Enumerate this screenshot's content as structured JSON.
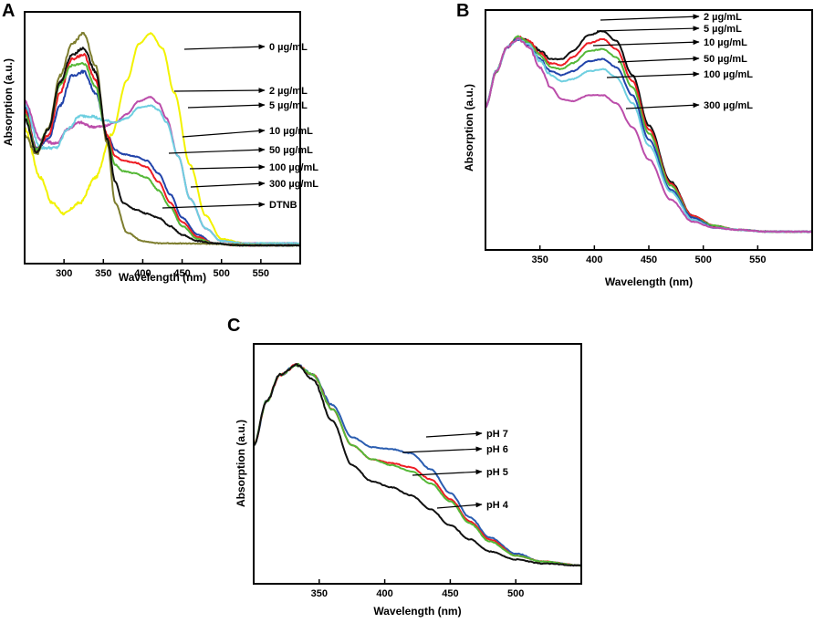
{
  "figure": {
    "panels": [
      "A",
      "B",
      "C"
    ]
  },
  "chart_data": [
    {
      "id": "A",
      "type": "line",
      "panel_label": "A",
      "title": "",
      "xlabel": "Wavelength (nm)",
      "ylabel": "Absorption (a.u.)",
      "xlim": [
        250,
        600
      ],
      "ylim": [
        0,
        1.05
      ],
      "xticks": [
        300,
        350,
        400,
        450,
        500,
        550
      ],
      "grid": false,
      "series": [
        {
          "name": "0 µg/mL",
          "color": "#f2f200",
          "x": [
            250,
            270,
            285,
            300,
            320,
            340,
            360,
            380,
            395,
            410,
            425,
            440,
            460,
            480,
            500,
            530,
            560,
            600
          ],
          "y": [
            0.55,
            0.32,
            0.2,
            0.15,
            0.2,
            0.32,
            0.52,
            0.78,
            0.95,
            1.0,
            0.93,
            0.72,
            0.38,
            0.14,
            0.03,
            0.01,
            0.01,
            0.01
          ]
        },
        {
          "name": "2 µg/mL",
          "color": "#bb4daa",
          "x": [
            250,
            270,
            290,
            305,
            320,
            335,
            350,
            365,
            380,
            395,
            410,
            420,
            430,
            445,
            460,
            480,
            500,
            530,
            600
          ],
          "y": [
            0.68,
            0.5,
            0.48,
            0.55,
            0.58,
            0.56,
            0.56,
            0.58,
            0.62,
            0.68,
            0.7,
            0.67,
            0.6,
            0.42,
            0.22,
            0.08,
            0.02,
            0.01,
            0.01
          ]
        },
        {
          "name": "5 µg/mL",
          "color": "#6ecfe0",
          "x": [
            250,
            270,
            290,
            305,
            320,
            335,
            350,
            365,
            380,
            395,
            410,
            420,
            430,
            445,
            460,
            480,
            500,
            530,
            600
          ],
          "y": [
            0.66,
            0.46,
            0.46,
            0.55,
            0.61,
            0.61,
            0.59,
            0.58,
            0.6,
            0.65,
            0.66,
            0.64,
            0.58,
            0.42,
            0.22,
            0.08,
            0.02,
            0.01,
            0.01
          ]
        },
        {
          "name": "10 µg/mL",
          "color": "#2244aa",
          "x": [
            250,
            265,
            280,
            295,
            310,
            325,
            340,
            355,
            365,
            375,
            390,
            405,
            420,
            435,
            450,
            470,
            490,
            520,
            600
          ],
          "y": [
            0.65,
            0.46,
            0.5,
            0.66,
            0.8,
            0.82,
            0.72,
            0.52,
            0.45,
            0.43,
            0.42,
            0.4,
            0.34,
            0.24,
            0.13,
            0.05,
            0.01,
            0.0,
            0.0
          ]
        },
        {
          "name": "50 µg/mL",
          "color": "#ee1c24",
          "x": [
            250,
            265,
            280,
            295,
            310,
            325,
            340,
            355,
            365,
            375,
            390,
            405,
            420,
            435,
            450,
            470,
            490,
            520,
            600
          ],
          "y": [
            0.64,
            0.45,
            0.52,
            0.72,
            0.88,
            0.9,
            0.78,
            0.52,
            0.42,
            0.4,
            0.39,
            0.37,
            0.3,
            0.2,
            0.11,
            0.04,
            0.01,
            0.0,
            0.0
          ]
        },
        {
          "name": "100 µg/mL",
          "color": "#55b837",
          "x": [
            250,
            265,
            280,
            295,
            310,
            325,
            340,
            355,
            365,
            375,
            390,
            405,
            420,
            435,
            450,
            470,
            490,
            520,
            600
          ],
          "y": [
            0.62,
            0.45,
            0.55,
            0.76,
            0.85,
            0.86,
            0.75,
            0.5,
            0.38,
            0.35,
            0.34,
            0.32,
            0.26,
            0.18,
            0.09,
            0.03,
            0.01,
            0.0,
            0.0
          ]
        },
        {
          "name": "300 µg/mL",
          "color": "#7d7d2e",
          "x": [
            250,
            265,
            280,
            295,
            310,
            325,
            340,
            355,
            365,
            380,
            400,
            420,
            600
          ],
          "y": [
            0.52,
            0.43,
            0.55,
            0.8,
            0.95,
            1.0,
            0.85,
            0.48,
            0.2,
            0.06,
            0.02,
            0.01,
            0.0
          ]
        },
        {
          "name": "DTNB",
          "color": "#111111",
          "x": [
            250,
            265,
            280,
            295,
            310,
            325,
            340,
            355,
            365,
            375,
            390,
            405,
            420,
            435,
            450,
            470,
            490,
            520,
            600
          ],
          "y": [
            0.6,
            0.44,
            0.55,
            0.77,
            0.9,
            0.93,
            0.82,
            0.5,
            0.3,
            0.2,
            0.17,
            0.15,
            0.13,
            0.09,
            0.05,
            0.02,
            0.01,
            0.0,
            0.0
          ]
        }
      ],
      "annotations": [
        "0 µg/mL",
        "2 µg/mL",
        "5 µg/mL",
        "10 µg/mL",
        "50 µg/mL",
        "100 µg/mL",
        "300 µg/mL",
        "DTNB"
      ]
    },
    {
      "id": "B",
      "type": "line",
      "panel_label": "B",
      "title": "",
      "xlabel": "Wavelength (nm)",
      "ylabel": "Absorption (a.u.)",
      "xlim": [
        300,
        600
      ],
      "ylim": [
        0,
        1.05
      ],
      "xticks": [
        350,
        400,
        450,
        500,
        550
      ],
      "grid": false,
      "series": [
        {
          "name": "2 µg/mL",
          "color": "#111111",
          "x": [
            300,
            310,
            320,
            330,
            340,
            350,
            360,
            370,
            380,
            395,
            408,
            420,
            435,
            450,
            470,
            490,
            510,
            530,
            560,
            600
          ],
          "y": [
            0.62,
            0.8,
            0.92,
            0.97,
            0.95,
            0.9,
            0.86,
            0.86,
            0.9,
            0.98,
            1.0,
            0.95,
            0.78,
            0.53,
            0.25,
            0.08,
            0.03,
            0.01,
            0.0,
            0.0
          ]
        },
        {
          "name": "5 µg/mL",
          "color": "#ee1c24",
          "x": [
            300,
            310,
            320,
            330,
            340,
            350,
            360,
            370,
            380,
            395,
            408,
            420,
            435,
            450,
            470,
            490,
            510,
            530,
            560,
            600
          ],
          "y": [
            0.62,
            0.8,
            0.92,
            0.97,
            0.95,
            0.89,
            0.84,
            0.83,
            0.87,
            0.94,
            0.96,
            0.91,
            0.75,
            0.51,
            0.24,
            0.08,
            0.03,
            0.01,
            0.0,
            0.0
          ]
        },
        {
          "name": "10 µg/mL",
          "color": "#55b837",
          "x": [
            300,
            310,
            320,
            330,
            340,
            350,
            360,
            370,
            380,
            395,
            408,
            420,
            435,
            450,
            470,
            490,
            510,
            530,
            560,
            600
          ],
          "y": [
            0.62,
            0.8,
            0.92,
            0.97,
            0.94,
            0.88,
            0.82,
            0.81,
            0.84,
            0.9,
            0.91,
            0.87,
            0.72,
            0.49,
            0.23,
            0.07,
            0.03,
            0.01,
            0.0,
            0.0
          ]
        },
        {
          "name": "50 µg/mL",
          "color": "#2244aa",
          "x": [
            300,
            310,
            320,
            330,
            340,
            350,
            360,
            370,
            380,
            395,
            408,
            420,
            435,
            450,
            470,
            490,
            510,
            530,
            560,
            600
          ],
          "y": [
            0.62,
            0.8,
            0.92,
            0.96,
            0.93,
            0.86,
            0.8,
            0.78,
            0.8,
            0.85,
            0.86,
            0.82,
            0.68,
            0.46,
            0.21,
            0.07,
            0.02,
            0.01,
            0.0,
            0.0
          ]
        },
        {
          "name": "100 µg/mL",
          "color": "#6ecfe0",
          "x": [
            300,
            310,
            320,
            330,
            340,
            350,
            360,
            370,
            380,
            395,
            408,
            420,
            435,
            450,
            470,
            490,
            510,
            530,
            560,
            600
          ],
          "y": [
            0.62,
            0.8,
            0.92,
            0.96,
            0.93,
            0.85,
            0.78,
            0.75,
            0.76,
            0.8,
            0.81,
            0.77,
            0.64,
            0.43,
            0.2,
            0.06,
            0.02,
            0.01,
            0.0,
            0.0
          ]
        },
        {
          "name": "300 µg/mL",
          "color": "#bb4daa",
          "x": [
            300,
            310,
            320,
            330,
            340,
            350,
            360,
            370,
            380,
            395,
            408,
            420,
            435,
            450,
            470,
            490,
            510,
            530,
            560,
            600
          ],
          "y": [
            0.62,
            0.8,
            0.92,
            0.96,
            0.92,
            0.82,
            0.72,
            0.66,
            0.65,
            0.68,
            0.68,
            0.64,
            0.52,
            0.36,
            0.16,
            0.05,
            0.02,
            0.01,
            0.0,
            0.0
          ]
        }
      ],
      "annotations": [
        "2 µg/mL",
        "5 µg/mL",
        "10 µg/mL",
        "50 µg/mL",
        "100 µg/mL",
        "300 µg/mL"
      ]
    },
    {
      "id": "C",
      "type": "line",
      "panel_label": "C",
      "title": "",
      "xlabel": "Wavelength (nm)",
      "ylabel": "Absorption (a.u.)",
      "xlim": [
        300,
        550
      ],
      "ylim": [
        0,
        1.05
      ],
      "xticks": [
        350,
        400,
        450,
        500
      ],
      "grid": false,
      "series": [
        {
          "name": "pH 7",
          "color": "#2a5db0",
          "x": [
            300,
            310,
            320,
            333,
            345,
            360,
            375,
            390,
            405,
            420,
            435,
            450,
            465,
            480,
            500,
            520,
            550
          ],
          "y": [
            0.6,
            0.82,
            0.95,
            1.0,
            0.95,
            0.8,
            0.64,
            0.59,
            0.58,
            0.56,
            0.48,
            0.36,
            0.24,
            0.14,
            0.06,
            0.02,
            0.0
          ]
        },
        {
          "name": "pH 6",
          "color": "#ee1c24",
          "x": [
            300,
            310,
            320,
            333,
            345,
            360,
            375,
            390,
            405,
            420,
            435,
            450,
            465,
            480,
            500,
            520,
            550
          ],
          "y": [
            0.6,
            0.82,
            0.95,
            1.0,
            0.95,
            0.78,
            0.6,
            0.53,
            0.51,
            0.49,
            0.43,
            0.33,
            0.22,
            0.13,
            0.05,
            0.02,
            0.0
          ]
        },
        {
          "name": "pH 5",
          "color": "#55b837",
          "x": [
            300,
            310,
            320,
            333,
            345,
            360,
            375,
            390,
            405,
            420,
            435,
            450,
            465,
            480,
            500,
            520,
            550
          ],
          "y": [
            0.6,
            0.82,
            0.95,
            1.0,
            0.95,
            0.78,
            0.6,
            0.53,
            0.5,
            0.47,
            0.41,
            0.32,
            0.21,
            0.12,
            0.05,
            0.02,
            0.0
          ]
        },
        {
          "name": "pH 4",
          "color": "#111111",
          "x": [
            300,
            310,
            320,
            333,
            345,
            360,
            375,
            390,
            405,
            420,
            435,
            450,
            465,
            480,
            500,
            520,
            550
          ],
          "y": [
            0.6,
            0.82,
            0.95,
            1.0,
            0.93,
            0.72,
            0.5,
            0.42,
            0.39,
            0.35,
            0.28,
            0.2,
            0.13,
            0.07,
            0.03,
            0.01,
            0.0
          ]
        }
      ],
      "annotations": [
        "pH 7",
        "pH 6",
        "pH 5",
        "pH 4"
      ]
    }
  ]
}
